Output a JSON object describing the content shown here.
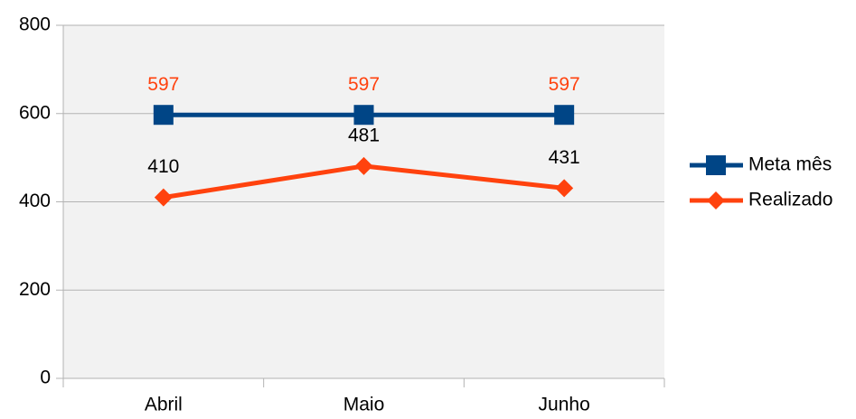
{
  "chart_data": {
    "type": "line",
    "categories": [
      "Abril",
      "Maio",
      "Junho"
    ],
    "series": [
      {
        "name": "Meta mês",
        "color": "#004586",
        "marker": "square",
        "label_color": "#ff420e",
        "values": [
          597,
          597,
          597
        ]
      },
      {
        "name": "Realizado",
        "color": "#ff420e",
        "marker": "diamond",
        "label_color": "#000000",
        "values": [
          410,
          481,
          431
        ]
      }
    ],
    "ylim": [
      0,
      800
    ],
    "yticks": [
      0,
      200,
      400,
      600,
      800
    ],
    "grid": true,
    "legend": "right"
  }
}
